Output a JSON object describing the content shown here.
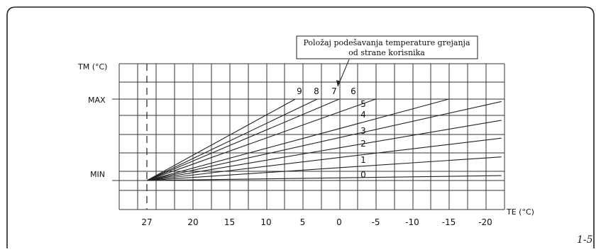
{
  "chart_data": {
    "type": "line",
    "title": "",
    "callout": {
      "line1": "Položaj podešavanja temperature grejanja",
      "line2": "od strane korisnika"
    },
    "y_axis_label": "TM (°C)",
    "x_axis_label": "TE (°C)",
    "y_level_labels": {
      "max": "MAX",
      "min": "MIN"
    },
    "x_ticks": [
      "27",
      "20",
      "15",
      "10",
      "5",
      "0",
      "-5",
      "-10",
      "-15",
      "-20"
    ],
    "x_tick_values": [
      27,
      20,
      15,
      10,
      5,
      0,
      -5,
      -10,
      -15,
      -20
    ],
    "origin": {
      "te": 27,
      "tm_level": "MIN"
    },
    "curves": [
      {
        "label": "0",
        "end_te": -22.2,
        "end_tm_level": 0.06
      },
      {
        "label": "1",
        "end_te": -22.2,
        "end_tm_level": 0.29
      },
      {
        "label": "2",
        "end_te": -22.2,
        "end_tm_level": 0.52
      },
      {
        "label": "3",
        "end_te": -22.2,
        "end_tm_level": 0.74
      },
      {
        "label": "4",
        "end_te": -22.2,
        "end_tm_level": 0.97
      },
      {
        "label": "5",
        "end_te": -15,
        "end_tm_level": 1.0
      },
      {
        "label": "6",
        "end_te": -5,
        "end_tm_level": 1.0
      },
      {
        "label": "7",
        "end_te": 0,
        "end_tm_level": 1.0
      },
      {
        "label": "8",
        "end_te": 3,
        "end_tm_level": 1.0
      },
      {
        "label": "9",
        "end_te": 6,
        "end_tm_level": 1.0
      }
    ],
    "grid": true
  },
  "figure_number": "1-5"
}
